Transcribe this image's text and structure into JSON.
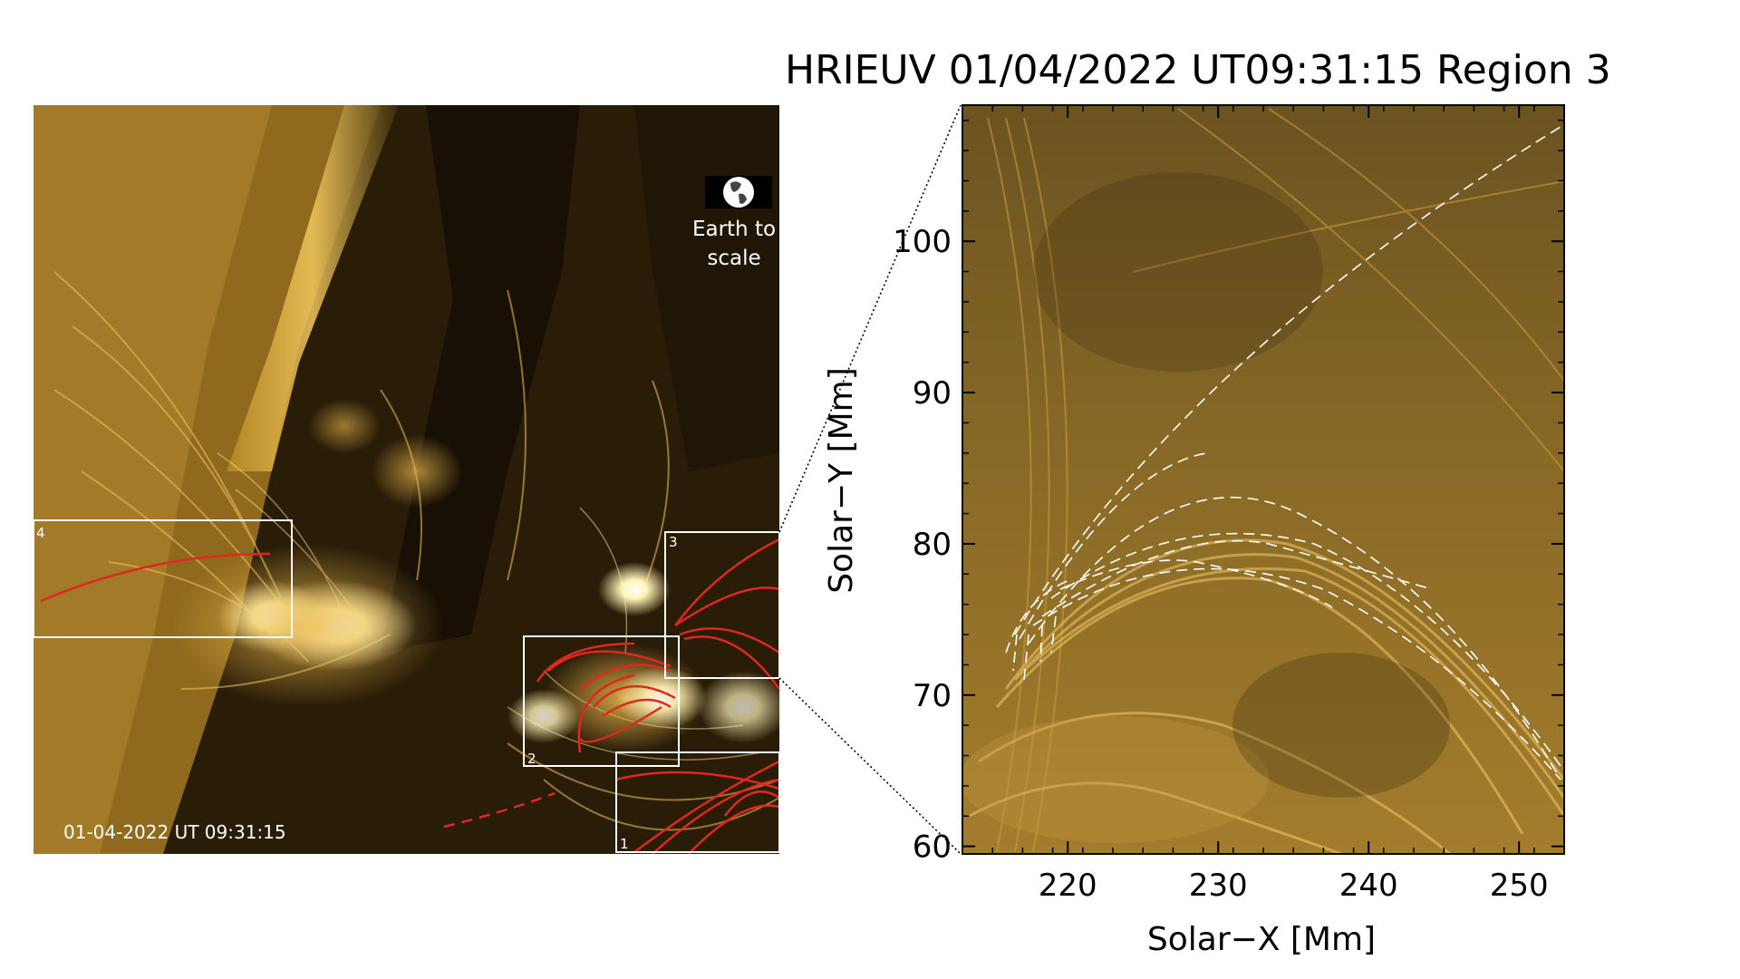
{
  "title": "HRIEUV 01/04/2022 UT09:31:15 Region 3",
  "left_panel": {
    "timestamp": "01-04-2022 UT 09:31:15",
    "earth_note_line1": "Earth to",
    "earth_note_line2": "scale",
    "regions": [
      {
        "id": "1"
      },
      {
        "id": "2"
      },
      {
        "id": "3"
      },
      {
        "id": "4"
      }
    ]
  },
  "right_panel": {
    "xlabel": "Solar−X [Mm]",
    "ylabel": "Solar−Y [Mm]",
    "xrange": [
      213,
      253
    ],
    "yrange": [
      59.5,
      109
    ],
    "xticks": [
      "220",
      "230",
      "240",
      "250"
    ],
    "yticks": [
      "60",
      "70",
      "80",
      "90",
      "100"
    ]
  },
  "colors": {
    "corona_bright": "#fff2b0",
    "corona_mid": "#c8962a",
    "corona_dark": "#1a1205",
    "fieldline_red": "#e0281e",
    "overlay_white": "#ffffff"
  }
}
